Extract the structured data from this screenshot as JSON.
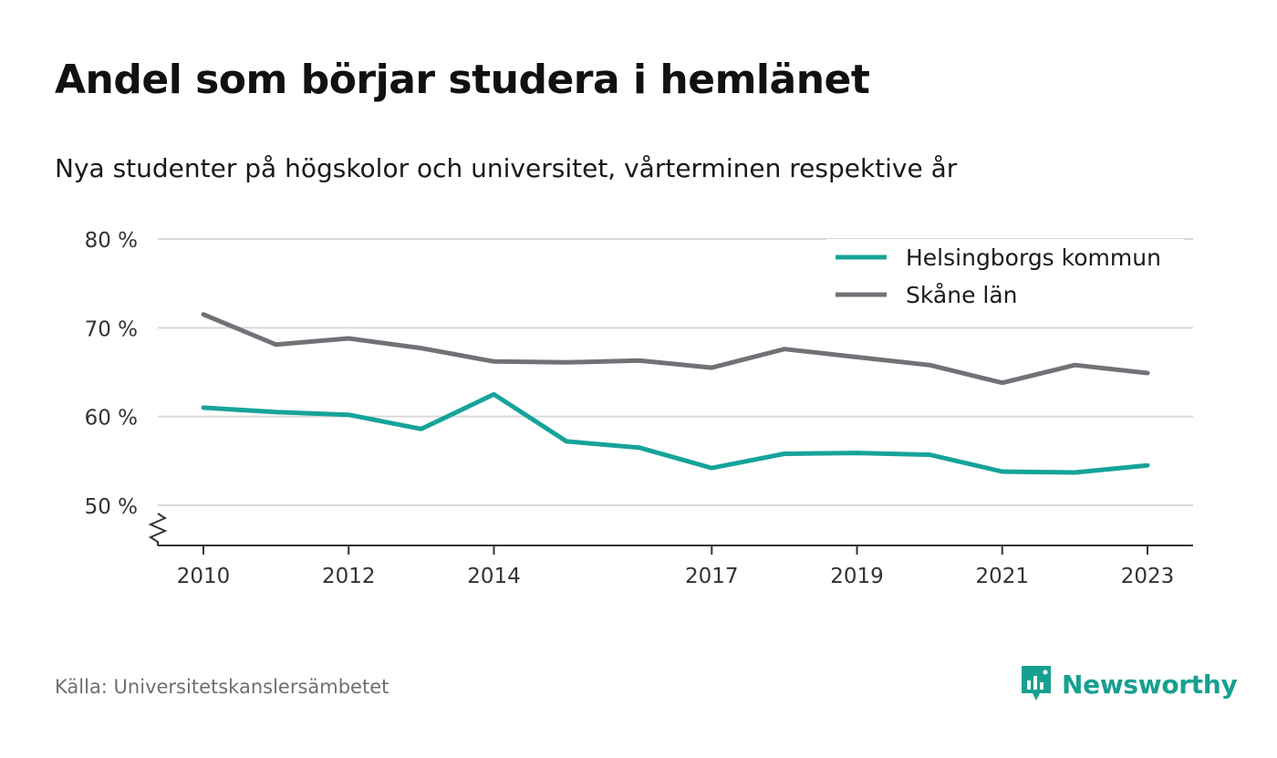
{
  "title": "Andel som börjar studera i hemlänet",
  "subtitle": "Nya studenter på högskolor och universitet, vårterminen respektive år",
  "source": "Källa: Universitetskanslersämbetet",
  "brand": "Newsworthy",
  "colors": {
    "helsingborg": "#16a39a",
    "skane": "#737077",
    "grid": "#d9d9d9",
    "axis": "#333333",
    "brand": "#16a090"
  },
  "chart_data": {
    "type": "line",
    "x": [
      2010,
      2011,
      2012,
      2013,
      2014,
      2015,
      2016,
      2017,
      2018,
      2019,
      2020,
      2021,
      2022,
      2023
    ],
    "x_tick_labels": [
      "2010",
      "2012",
      "2014",
      "2017",
      "2019",
      "2021",
      "2023"
    ],
    "x_ticks": [
      2010,
      2012,
      2014,
      2017,
      2019,
      2021,
      2023
    ],
    "y_ticks": [
      50,
      60,
      70,
      80
    ],
    "y_tick_labels": [
      "50 %",
      "60 %",
      "70 %",
      "80 %"
    ],
    "ylim": [
      45.5,
      80
    ],
    "axis_break": true,
    "grid": true,
    "legend_position": "top-right",
    "series": [
      {
        "name": "Helsingborgs kommun",
        "color": "#16a39a",
        "values": [
          61.0,
          60.5,
          60.2,
          58.6,
          62.5,
          57.2,
          56.5,
          54.2,
          55.8,
          55.9,
          55.7,
          53.8,
          53.7,
          54.5
        ]
      },
      {
        "name": "Skåne län",
        "color": "#737077",
        "values": [
          71.5,
          68.1,
          68.8,
          67.7,
          66.2,
          66.1,
          66.3,
          65.5,
          67.6,
          66.7,
          65.8,
          63.8,
          65.8,
          64.9
        ]
      }
    ]
  }
}
